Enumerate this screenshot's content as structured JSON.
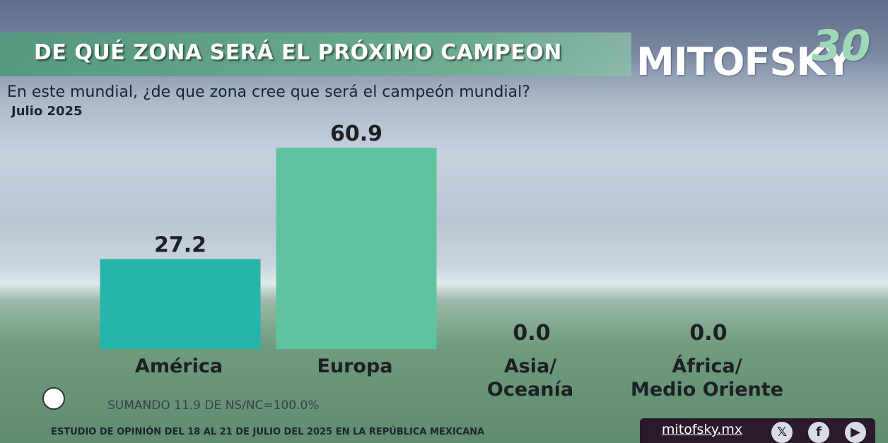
{
  "header": {
    "title": "DE QUÉ ZONA SERÁ EL PRÓXIMO CAMPEON",
    "logo_text": "MITOFSKY",
    "logo_number": "30"
  },
  "question": "En este mundial, ¿de que zona cree que será el campeón mundial?",
  "date": "Julio 2025",
  "footnote": "SUMANDO 11.9 DE NS/NC=100.0%",
  "footer": {
    "study": "ESTUDIO DE OPINIÓN DEL 18 AL 21 DE JULIO DEL 2025 EN LA REPÚBLICA MEXICANA",
    "website": "mitofsky.mx"
  },
  "social_icons": [
    "x-icon",
    "facebook-icon",
    "youtube-icon"
  ],
  "chart_data": {
    "type": "bar",
    "categories": [
      [
        "América"
      ],
      [
        "Europa"
      ],
      [
        "Asia/",
        "Oceanía"
      ],
      [
        "África/",
        "Medio Oriente"
      ]
    ],
    "values": [
      27.2,
      60.9,
      0.0,
      0.0
    ],
    "value_labels": [
      "27.2",
      "60.9",
      "0.0",
      "0.0"
    ],
    "colors": [
      "#25b5ab",
      "#5ec4a0",
      "#5ec4a0",
      "#5ec4a0"
    ],
    "grid": false,
    "ylim": [
      0,
      60.9
    ]
  }
}
